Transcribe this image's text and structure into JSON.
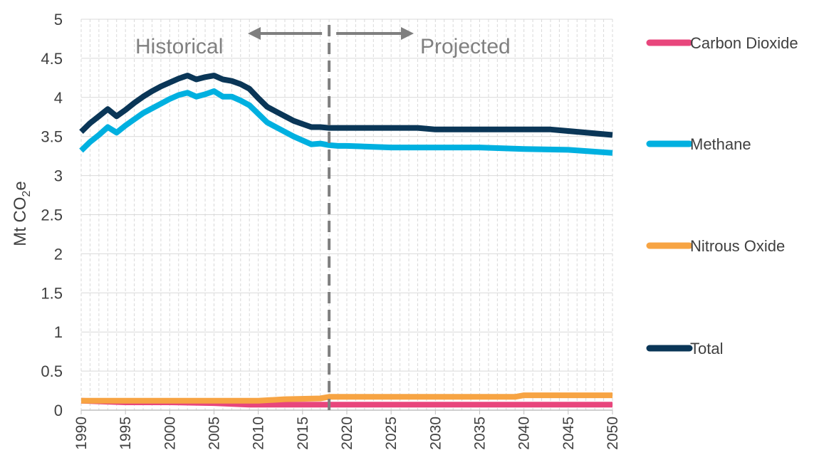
{
  "chart_data": {
    "type": "line",
    "title": "",
    "xlabel": "",
    "ylabel": {
      "main": "Mt CO",
      "sub": "2",
      "suffix": "e"
    },
    "xlim": [
      1990,
      2050
    ],
    "ylim": [
      0,
      5
    ],
    "grid": true,
    "legend_position": "right",
    "y_ticks": [
      "0",
      "0.5",
      "1",
      "1.5",
      "2",
      "2.5",
      "3",
      "3.5",
      "4",
      "4.5",
      "5"
    ],
    "x_ticks": [
      "1990",
      "1995",
      "2000",
      "2005",
      "2010",
      "2015",
      "2020",
      "2025",
      "2030",
      "2035",
      "2040",
      "2045",
      "2050"
    ],
    "divider_year": 2018,
    "annotations": {
      "historical": "Historical",
      "projected": "Projected"
    },
    "series": [
      {
        "name": "Carbon Dioxide",
        "color": "#e8467c",
        "x": [
          1990,
          1995,
          2000,
          2005,
          2009,
          2013,
          2018,
          2050
        ],
        "y": [
          0.12,
          0.1,
          0.1,
          0.09,
          0.07,
          0.07,
          0.07,
          0.07
        ]
      },
      {
        "name": "Methane",
        "color": "#00b0e0",
        "x": [
          1990,
          1991,
          1992,
          1993,
          1994,
          1995,
          1996,
          1997,
          1998,
          1999,
          2000,
          2001,
          2002,
          2003,
          2004,
          2005,
          2006,
          2007,
          2008,
          2009,
          2010,
          2011,
          2012,
          2013,
          2014,
          2015,
          2016,
          2017,
          2018,
          2019,
          2020,
          2025,
          2030,
          2035,
          2040,
          2045,
          2050
        ],
        "y": [
          3.32,
          3.43,
          3.52,
          3.62,
          3.55,
          3.64,
          3.72,
          3.8,
          3.86,
          3.92,
          3.98,
          4.03,
          4.06,
          4.01,
          4.04,
          4.08,
          4.01,
          4.01,
          3.96,
          3.9,
          3.79,
          3.68,
          3.62,
          3.56,
          3.5,
          3.45,
          3.4,
          3.41,
          3.39,
          3.38,
          3.38,
          3.36,
          3.36,
          3.36,
          3.34,
          3.33,
          3.29
        ]
      },
      {
        "name": "Nitrous Oxide",
        "color": "#f7a443",
        "x": [
          1990,
          2000,
          2010,
          2013,
          2017,
          2018,
          2039,
          2040,
          2050
        ],
        "y": [
          0.12,
          0.12,
          0.12,
          0.14,
          0.15,
          0.17,
          0.17,
          0.19,
          0.19
        ]
      },
      {
        "name": "Total",
        "color": "#0a3657",
        "x": [
          1990,
          1991,
          1992,
          1993,
          1994,
          1995,
          1996,
          1997,
          1998,
          1999,
          2000,
          2001,
          2002,
          2003,
          2004,
          2005,
          2006,
          2007,
          2008,
          2009,
          2010,
          2011,
          2012,
          2013,
          2014,
          2015,
          2016,
          2017,
          2018,
          2020,
          2025,
          2028,
          2030,
          2035,
          2040,
          2043,
          2045,
          2050
        ],
        "y": [
          3.56,
          3.67,
          3.76,
          3.85,
          3.76,
          3.84,
          3.93,
          4.01,
          4.08,
          4.14,
          4.19,
          4.24,
          4.28,
          4.23,
          4.26,
          4.28,
          4.23,
          4.21,
          4.17,
          4.11,
          3.99,
          3.88,
          3.82,
          3.76,
          3.7,
          3.66,
          3.62,
          3.62,
          3.61,
          3.61,
          3.61,
          3.61,
          3.59,
          3.59,
          3.59,
          3.59,
          3.57,
          3.52
        ]
      }
    ]
  }
}
